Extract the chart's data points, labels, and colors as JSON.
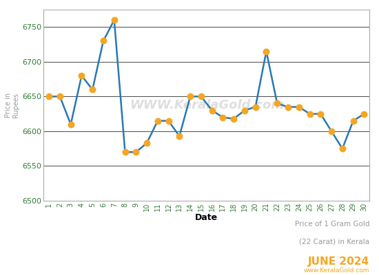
{
  "dates": [
    1,
    2,
    3,
    4,
    5,
    6,
    7,
    8,
    9,
    10,
    11,
    12,
    13,
    14,
    15,
    16,
    17,
    18,
    19,
    20,
    21,
    22,
    23,
    24,
    25,
    26,
    27,
    28,
    29,
    30
  ],
  "prices": [
    6650,
    6650,
    6610,
    6680,
    6660,
    6730,
    6760,
    6570,
    6570,
    6583,
    6615,
    6615,
    6593,
    6650,
    6650,
    6630,
    6620,
    6618,
    6630,
    6635,
    6715,
    6640,
    6635,
    6635,
    6625,
    6625,
    6600,
    6575,
    6615,
    6625
  ],
  "line_color": "#2878b4",
  "marker_color": "#f5a623",
  "marker_size": 5,
  "line_width": 1.8,
  "xlabel": "Date",
  "ylabel": "Price in\nRupees",
  "ylim": [
    6500,
    6775
  ],
  "yticks": [
    6500,
    6550,
    6600,
    6650,
    6700,
    6750
  ],
  "watermark": "WWW.KeralaGold.com",
  "watermark_color": "#d0d0d0",
  "annotation_line1": "Price of 1 Gram Gold",
  "annotation_line2": "(22 Carat) in Kerala",
  "annotation_line3": "JUNE 2024",
  "annotation_color_main": "#999999",
  "annotation_color_month": "#f5a623",
  "website_text": "www.KeralaGold.com",
  "website_color": "#f5a623",
  "background_color": "#ffffff",
  "grid_color": "#000000",
  "tick_color": "#2e7d32",
  "xlabel_color": "#000000",
  "ylabel_color": "#999999",
  "border_color": "#aaaaaa"
}
